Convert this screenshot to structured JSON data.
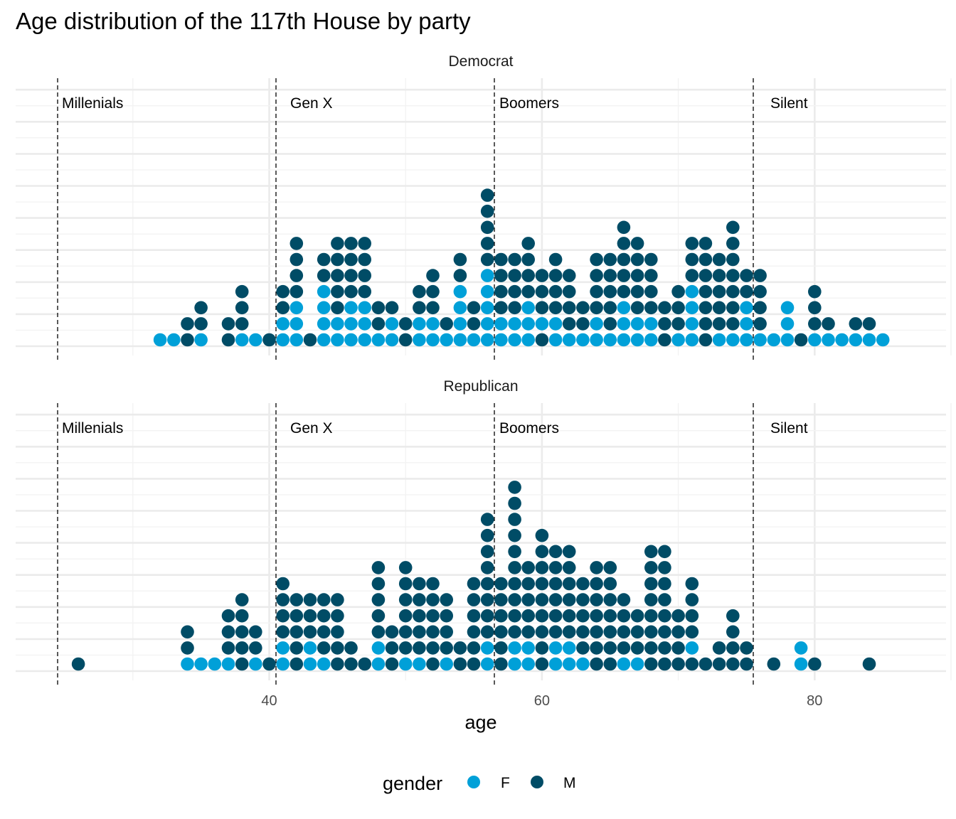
{
  "title": "Age distribution of the 117th House by party",
  "colors": {
    "F": "#00a0d8",
    "M": "#004c66"
  },
  "chart_data": {
    "type": "dotplot",
    "title": "Age distribution of the 117th House by party",
    "xlabel": "age",
    "xlim": [
      24,
      92
    ],
    "x_ticks": [
      40,
      60,
      80
    ],
    "grid": true,
    "legend": {
      "title": "gender",
      "position": "bottom",
      "entries": [
        "F",
        "M"
      ]
    },
    "generations": [
      {
        "label": "Millenials",
        "start": 25
      },
      {
        "label": "Gen X",
        "start": 41
      },
      {
        "label": "Boomers",
        "start": 57
      },
      {
        "label": "Silent",
        "start": 76
      }
    ],
    "panels": [
      {
        "name": "Democrat",
        "columns": [
          {
            "age": 32,
            "stack": "F"
          },
          {
            "age": 33,
            "stack": "F"
          },
          {
            "age": 34,
            "stack": "MM"
          },
          {
            "age": 35,
            "stack": "FMM"
          },
          {
            "age": 37,
            "stack": "MM"
          },
          {
            "age": 38,
            "stack": "FMMM"
          },
          {
            "age": 39,
            "stack": "F"
          },
          {
            "age": 40,
            "stack": "M"
          },
          {
            "age": 41,
            "stack": "FFMM"
          },
          {
            "age": 42,
            "stack": "FFFMMMM"
          },
          {
            "age": 43,
            "stack": "M"
          },
          {
            "age": 44,
            "stack": "FFFFMM"
          },
          {
            "age": 45,
            "stack": "FFMMMMM"
          },
          {
            "age": 46,
            "stack": "FFFMMMM"
          },
          {
            "age": 47,
            "stack": "FFFMMMM"
          },
          {
            "age": 48,
            "stack": "FMM"
          },
          {
            "age": 49,
            "stack": "FFM"
          },
          {
            "age": 50,
            "stack": "MM"
          },
          {
            "age": 51,
            "stack": "FFMM"
          },
          {
            "age": 52,
            "stack": "FFMMM"
          },
          {
            "age": 53,
            "stack": "FM"
          },
          {
            "age": 54,
            "stack": "FFFFMM"
          },
          {
            "age": 55,
            "stack": "FMM"
          },
          {
            "age": 56,
            "stack": "FFFFFMMMMM"
          },
          {
            "age": 57,
            "stack": "FFMMMM"
          },
          {
            "age": 58,
            "stack": "FFMMMM"
          },
          {
            "age": 59,
            "stack": "FFFMMMM"
          },
          {
            "age": 60,
            "stack": "MFMMM"
          },
          {
            "age": 61,
            "stack": "FFMMMM"
          },
          {
            "age": 62,
            "stack": "FMMMM"
          },
          {
            "age": 63,
            "stack": "FMM"
          },
          {
            "age": 64,
            "stack": "FFMMMM"
          },
          {
            "age": 65,
            "stack": "FMMMMM"
          },
          {
            "age": 66,
            "stack": "FFFMMMMM"
          },
          {
            "age": 67,
            "stack": "FFMMMMM"
          },
          {
            "age": 68,
            "stack": "FFMMMM"
          },
          {
            "age": 69,
            "stack": "MMM"
          },
          {
            "age": 70,
            "stack": "FMMM"
          },
          {
            "age": 71,
            "stack": "FFFFMMM"
          },
          {
            "age": 72,
            "stack": "MMMMMMM"
          },
          {
            "age": 73,
            "stack": "FMMMMM"
          },
          {
            "age": 74,
            "stack": "FMMMMMMM"
          },
          {
            "age": 75,
            "stack": "FFFMM"
          },
          {
            "age": 76,
            "stack": "FMMMM"
          },
          {
            "age": 77,
            "stack": "F"
          },
          {
            "age": 78,
            "stack": "FFF"
          },
          {
            "age": 79,
            "stack": "M"
          },
          {
            "age": 80,
            "stack": "FMMM"
          },
          {
            "age": 81,
            "stack": "FM"
          },
          {
            "age": 82,
            "stack": "F"
          },
          {
            "age": 83,
            "stack": "FM"
          },
          {
            "age": 84,
            "stack": "FM"
          },
          {
            "age": 85,
            "stack": "F"
          }
        ]
      },
      {
        "name": "Republican",
        "columns": [
          {
            "age": 26,
            "stack": "M"
          },
          {
            "age": 34,
            "stack": "FMM"
          },
          {
            "age": 35,
            "stack": "F"
          },
          {
            "age": 36,
            "stack": "F"
          },
          {
            "age": 37,
            "stack": "FMMM"
          },
          {
            "age": 38,
            "stack": "MMMMM"
          },
          {
            "age": 39,
            "stack": "FMM"
          },
          {
            "age": 40,
            "stack": "M"
          },
          {
            "age": 41,
            "stack": "FFMMMM"
          },
          {
            "age": 42,
            "stack": "MMMMM"
          },
          {
            "age": 43,
            "stack": "FFMMM"
          },
          {
            "age": 44,
            "stack": "FMMMM"
          },
          {
            "age": 45,
            "stack": "MMMMM"
          },
          {
            "age": 46,
            "stack": "MM"
          },
          {
            "age": 47,
            "stack": "M"
          },
          {
            "age": 48,
            "stack": "FFMMMMM"
          },
          {
            "age": 49,
            "stack": "MMM"
          },
          {
            "age": 50,
            "stack": "FMMMMMM"
          },
          {
            "age": 51,
            "stack": "FMMMMM"
          },
          {
            "age": 52,
            "stack": "MMMMMM"
          },
          {
            "age": 53,
            "stack": "FMMMM"
          },
          {
            "age": 54,
            "stack": "MM"
          },
          {
            "age": 55,
            "stack": "MMMMMM"
          },
          {
            "age": 56,
            "stack": "FFMMMMMMMM"
          },
          {
            "age": 57,
            "stack": "MMMMMM"
          },
          {
            "age": 58,
            "stack": "FFMMMMMMMMMM"
          },
          {
            "age": 59,
            "stack": "FFMMMMM"
          },
          {
            "age": 60,
            "stack": "MMMMMMMMM"
          },
          {
            "age": 61,
            "stack": "FFMMMMMM"
          },
          {
            "age": 62,
            "stack": "FFMMMMMM"
          },
          {
            "age": 63,
            "stack": "FMMMMM"
          },
          {
            "age": 64,
            "stack": "MMMMMMM"
          },
          {
            "age": 65,
            "stack": "MMMMMMM"
          },
          {
            "age": 66,
            "stack": "FMMMM"
          },
          {
            "age": 67,
            "stack": "FMMM"
          },
          {
            "age": 68,
            "stack": "MMMMMMMM"
          },
          {
            "age": 69,
            "stack": "MMMMMMMM"
          },
          {
            "age": 70,
            "stack": "MMMM"
          },
          {
            "age": 71,
            "stack": "MFMMMM"
          },
          {
            "age": 72,
            "stack": "M"
          },
          {
            "age": 73,
            "stack": "MM"
          },
          {
            "age": 74,
            "stack": "MMMM"
          },
          {
            "age": 75,
            "stack": "MM"
          },
          {
            "age": 77,
            "stack": "M"
          },
          {
            "age": 79,
            "stack": "FF"
          },
          {
            "age": 80,
            "stack": "M"
          },
          {
            "age": 84,
            "stack": "M"
          }
        ]
      }
    ]
  }
}
